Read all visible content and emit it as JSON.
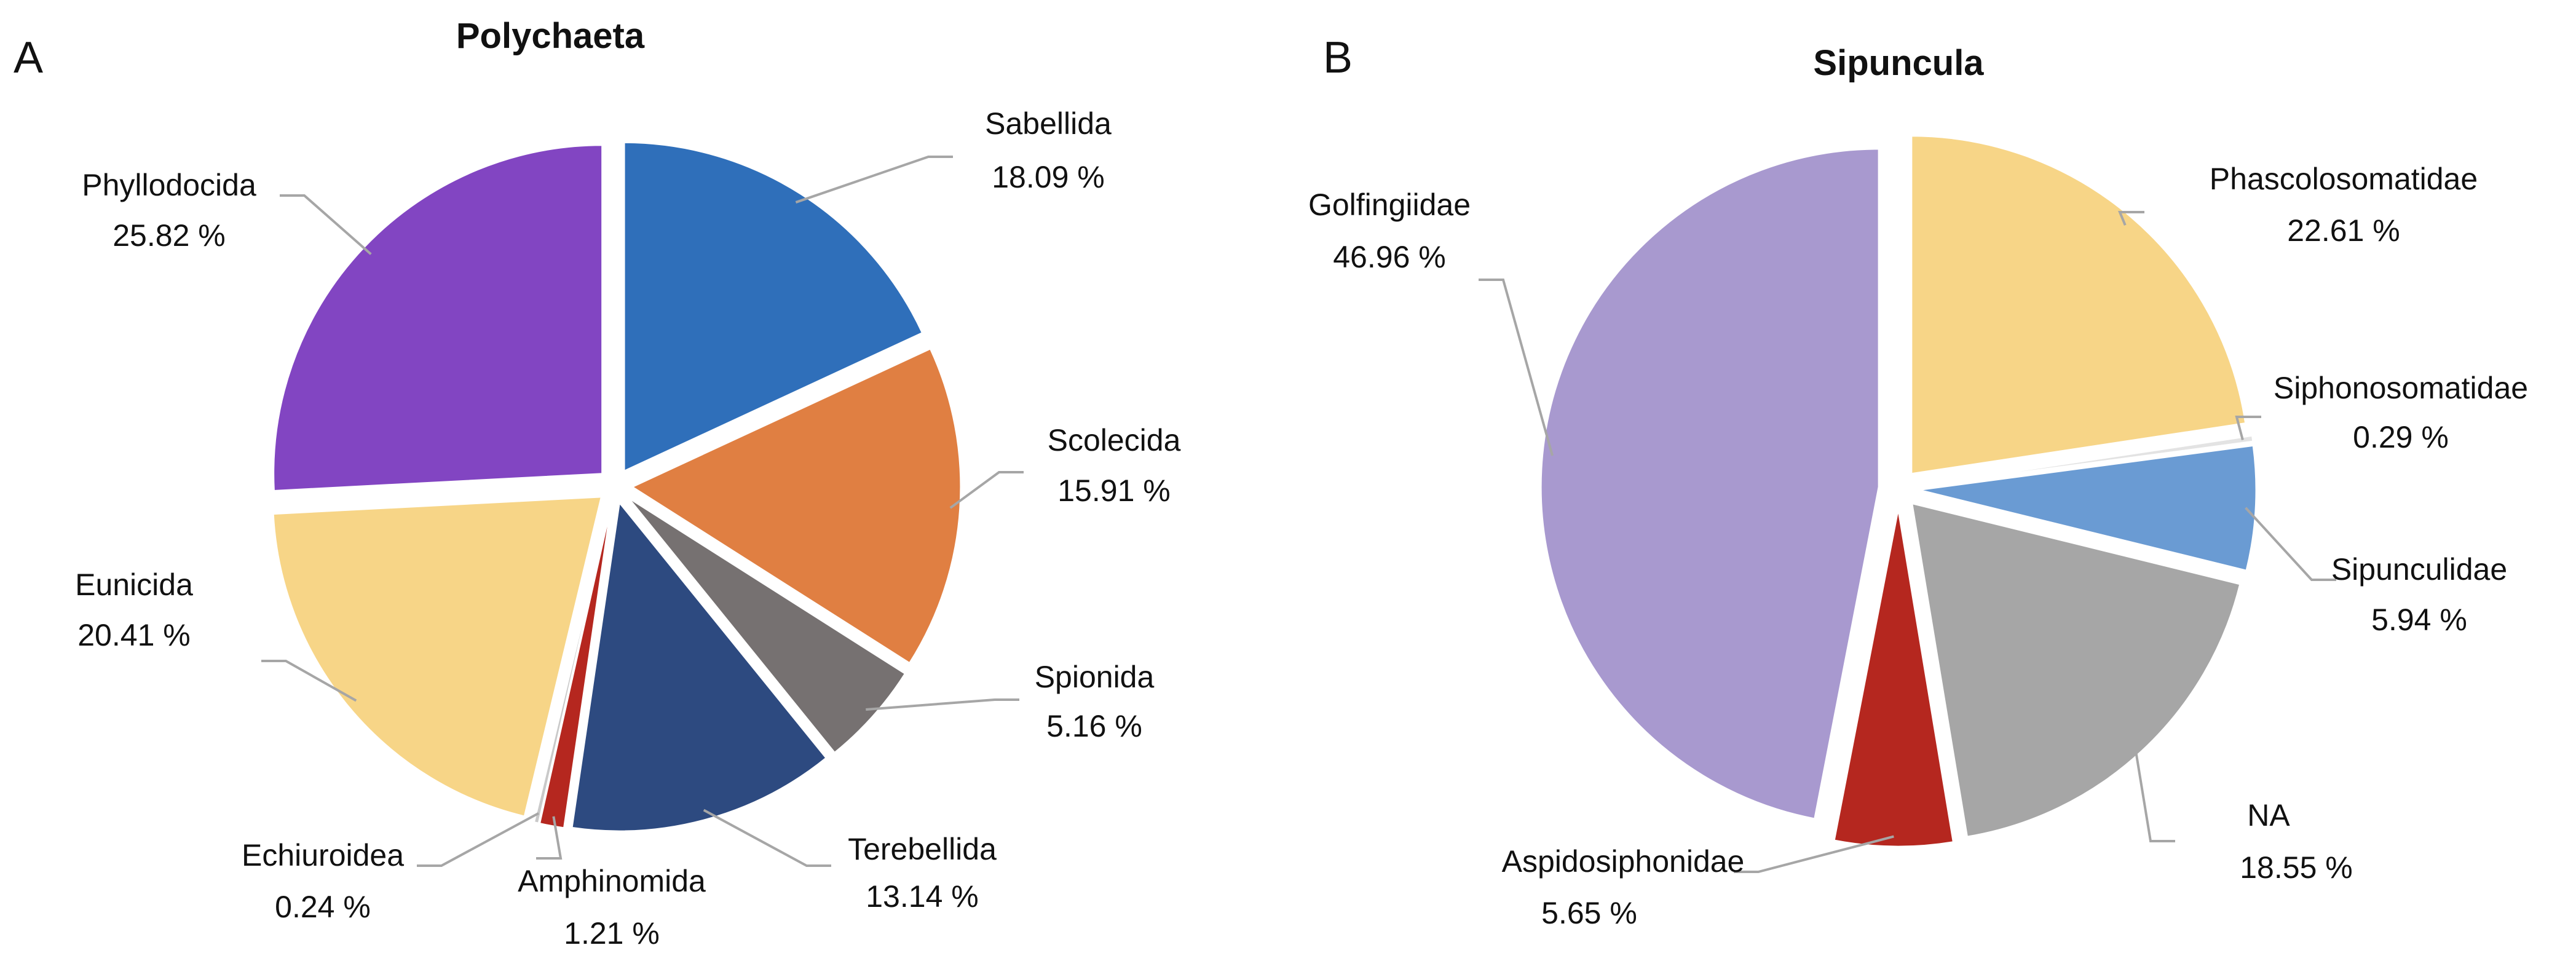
{
  "chart_data": [
    {
      "type": "pie",
      "panel": "A",
      "title": "Polychaeta",
      "slices": [
        {
          "label": "Sabellida",
          "value": 18.09,
          "pct_label": "18.09 %",
          "color": "#2f6fba"
        },
        {
          "label": "Scolecida",
          "value": 15.91,
          "pct_label": "15.91 %",
          "color": "#e07f42"
        },
        {
          "label": "Spionida",
          "value": 5.16,
          "pct_label": "5.16 %",
          "color": "#767171"
        },
        {
          "label": "Terebellida",
          "value": 13.14,
          "pct_label": "13.14 %",
          "color": "#2d4a80"
        },
        {
          "label": "Amphinomida",
          "value": 1.21,
          "pct_label": "1.21 %",
          "color": "#b5271f"
        },
        {
          "label": "Echiuroidea",
          "value": 0.24,
          "pct_label": "0.24 %",
          "color": "#c9c9c9"
        },
        {
          "label": "Eunicida",
          "value": 20.41,
          "pct_label": "20.41 %",
          "color": "#f7d587"
        },
        {
          "label": "Phyllodocida",
          "value": 25.82,
          "pct_label": "25.82 %",
          "color": "#8245c2"
        }
      ]
    },
    {
      "type": "pie",
      "panel": "B",
      "title": "Sipuncula",
      "slices": [
        {
          "label": "Phascolosomatidae",
          "value": 22.61,
          "pct_label": "22.61 %",
          "color": "#f7d587"
        },
        {
          "label": "Siphonosomatidae",
          "value": 0.29,
          "pct_label": "0.29 %",
          "color": "#e3e3e3"
        },
        {
          "label": "Sipunculidae",
          "value": 5.94,
          "pct_label": "5.94 %",
          "color": "#6a9bd3"
        },
        {
          "label": "NA",
          "value": 18.55,
          "pct_label": "18.55 %",
          "color": "#a6a6a6"
        },
        {
          "label": "Aspidosiphonidae",
          "value": 5.65,
          "pct_label": "5.65 %",
          "color": "#b5271f"
        },
        {
          "label": "Golfingiidae",
          "value": 46.96,
          "pct_label": "46.96 %",
          "color": "#a899cf"
        }
      ]
    }
  ]
}
